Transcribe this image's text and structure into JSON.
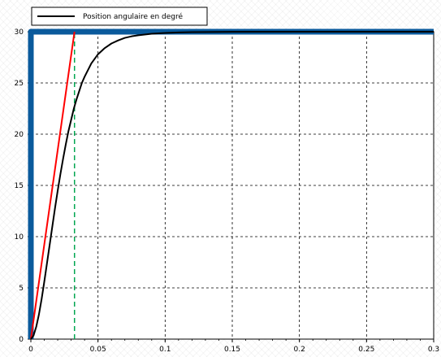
{
  "chart_data": {
    "type": "line",
    "xlim": [
      0,
      0.3
    ],
    "ylim": [
      0,
      30
    ],
    "x_ticks": [
      "0",
      "0.05",
      "0.1",
      "0.15",
      "0.2",
      "0.25",
      "0.3"
    ],
    "y_ticks": [
      "0",
      "5",
      "10",
      "15",
      "20",
      "25",
      "30"
    ],
    "grid": true,
    "legend_position": "top-left",
    "series": [
      {
        "name": "Position angulaire en degré",
        "color": "#000000",
        "x": [
          0,
          0.002,
          0.004,
          0.006,
          0.008,
          0.01,
          0.012,
          0.014,
          0.016,
          0.018,
          0.02,
          0.022,
          0.024,
          0.026,
          0.028,
          0.03,
          0.032,
          0.034,
          0.036,
          0.038,
          0.04,
          0.045,
          0.05,
          0.055,
          0.06,
          0.065,
          0.07,
          0.075,
          0.08,
          0.09,
          0.1,
          0.11,
          0.12,
          0.15,
          0.2,
          0.25,
          0.3
        ],
        "y": [
          0,
          0.35,
          1.2,
          2.4,
          3.9,
          5.6,
          7.4,
          9.2,
          11.0,
          12.8,
          14.5,
          16.1,
          17.6,
          19.0,
          20.3,
          21.4,
          22.5,
          23.4,
          24.2,
          25.0,
          25.6,
          26.9,
          27.8,
          28.4,
          28.85,
          29.15,
          29.4,
          29.55,
          29.65,
          29.8,
          29.88,
          29.93,
          29.96,
          29.99,
          30.0,
          30.0,
          30.0
        ]
      },
      {
        "color": "#ff0000",
        "x": [
          0,
          0.0325
        ],
        "y": [
          0,
          30
        ]
      },
      {
        "color": "#0a5a9c",
        "x": [
          0,
          0,
          0.3
        ],
        "y": [
          0,
          30,
          30
        ]
      },
      {
        "color": "#00a651",
        "style": "dashed",
        "x": [
          0.0325,
          0.0325
        ],
        "y": [
          0,
          30
        ]
      }
    ]
  }
}
